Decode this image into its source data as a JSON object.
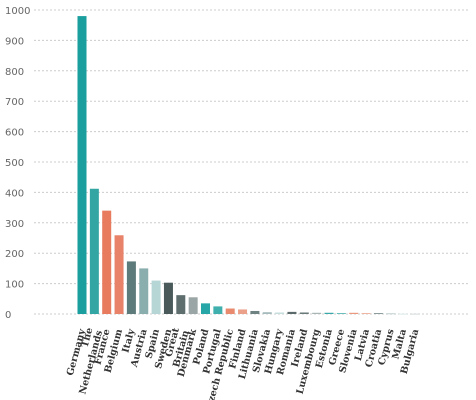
{
  "chart_data": {
    "type": "bar",
    "categories": [
      "Germany",
      "The Netherlands",
      "France",
      "Belgium",
      "Italy",
      "Austria",
      "Spain",
      "Sweden",
      "Great Britain",
      "Denmark",
      "Poland",
      "Portugal",
      "Czech Republic",
      "Finland",
      "Lithuania",
      "Slovakia",
      "Hungary",
      "Romania",
      "Ireland",
      "Luxembourg",
      "Estonia",
      "Greece",
      "Slovenia",
      "Latvia",
      "Croatia",
      "Cyprus",
      "Malta",
      "Bulgaria"
    ],
    "category_lines": [
      [
        "Germany"
      ],
      [
        "The",
        "Netherlands"
      ],
      [
        "France"
      ],
      [
        "Belgium"
      ],
      [
        "Italy"
      ],
      [
        "Austria"
      ],
      [
        "Spain"
      ],
      [
        "Sweden"
      ],
      [
        "Great",
        "Britain"
      ],
      [
        "Denmark"
      ],
      [
        "Poland"
      ],
      [
        "Portugal"
      ],
      [
        "Czech Republic"
      ],
      [
        "Finland"
      ],
      [
        "Lithuania"
      ],
      [
        "Slovakia"
      ],
      [
        "Hungary"
      ],
      [
        "Romania"
      ],
      [
        "Ireland"
      ],
      [
        "Luxembourg"
      ],
      [
        "Estonia"
      ],
      [
        "Greece"
      ],
      [
        "Slovenia"
      ],
      [
        "Latvia"
      ],
      [
        "Croatia"
      ],
      [
        "Cyprus"
      ],
      [
        "Malta"
      ],
      [
        "Bulgaria"
      ]
    ],
    "values": [
      980,
      412,
      340,
      259,
      173,
      150,
      110,
      103,
      62,
      55,
      35,
      25,
      18,
      15,
      10,
      6,
      5,
      7,
      5,
      4,
      4,
      3,
      4,
      3,
      3,
      2,
      1,
      1
    ],
    "colors": [
      "#1a9e9e",
      "#33a6a3",
      "#e87a5d",
      "#e8836a",
      "#5e7b7b",
      "#8aaeae",
      "#b6d6d6",
      "#4a5a5a",
      "#5e6e6e",
      "#9aa6a6",
      "#26a6a6",
      "#3fb0ad",
      "#e88a6e",
      "#eba08a",
      "#6e8282",
      "#a6bcbc",
      "#c6dede",
      "#5a6a6a",
      "#6a7a7a",
      "#aab6b6",
      "#3aa8a8",
      "#5cb8b5",
      "#eb9a80",
      "#eeb09c",
      "#829494",
      "#b2c6c6",
      "#d2e4e4",
      "#c8d2d2"
    ],
    "yticks": [
      0,
      100,
      200,
      300,
      400,
      500,
      600,
      700,
      800,
      900,
      1000
    ],
    "ylim": [
      0,
      1000
    ],
    "grid": true,
    "title": "",
    "xlabel": "",
    "ylabel": ""
  }
}
